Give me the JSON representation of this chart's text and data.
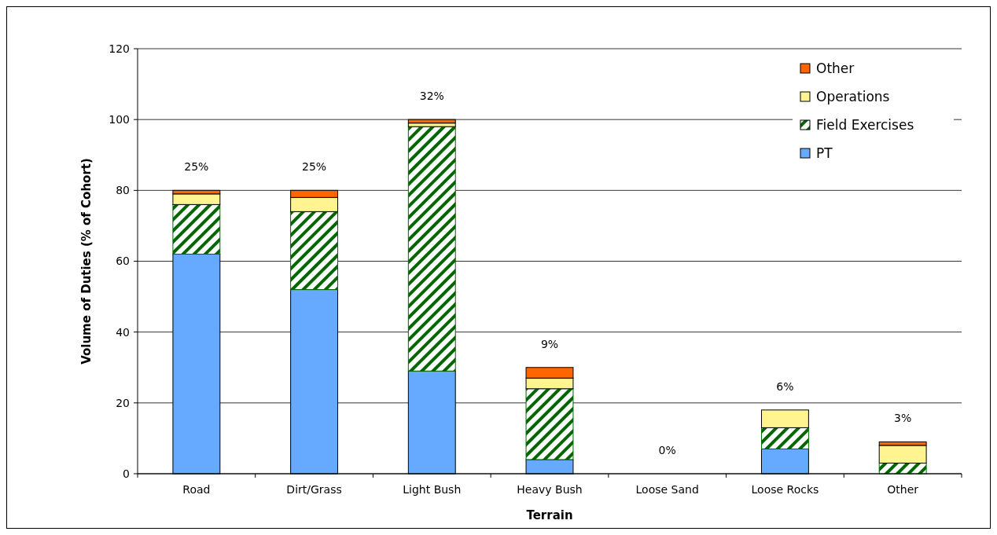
{
  "chart_data": {
    "type": "bar",
    "stacked": true,
    "xlabel": "Terrain",
    "ylabel": "Volume of Duties (% of Cohort)",
    "categories": [
      "Road",
      "Dirt/Grass",
      "Light Bush",
      "Heavy Bush",
      "Loose Sand",
      "Loose Rocks",
      "Other"
    ],
    "series": [
      {
        "name": "PT",
        "color": "#66aaff",
        "values": [
          62,
          52,
          29,
          4,
          0,
          7,
          0
        ]
      },
      {
        "name": "Field Exercises",
        "color": "#006600",
        "values": [
          14,
          22,
          69,
          20,
          0,
          6,
          3
        ]
      },
      {
        "name": "Operations",
        "color": "#fff48f",
        "values": [
          3,
          4,
          1,
          3,
          0,
          5,
          5
        ]
      },
      {
        "name": "Other",
        "color": "#ff6600",
        "values": [
          1,
          2,
          1,
          3,
          0,
          0,
          1
        ]
      }
    ],
    "ylim": [
      0,
      120
    ],
    "yticks": [
      0,
      20,
      40,
      60,
      80,
      100,
      120
    ],
    "grid": "y",
    "legend": "top right",
    "annotations": [
      "25%",
      "25%",
      "32%",
      "9%",
      "0%",
      "6%",
      "3%"
    ]
  }
}
